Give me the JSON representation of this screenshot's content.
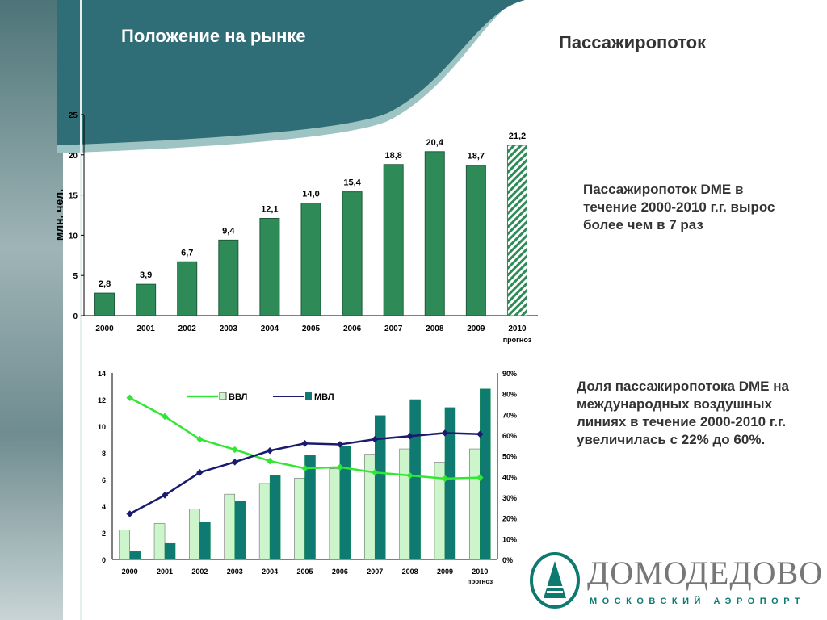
{
  "header": {
    "title": "Положение на рынке",
    "subtitle": "Пассажиропоток"
  },
  "notes": [
    "Пассажиропоток DME в течение 2000-2010 г.г. вырос более чем в 7 раз",
    "Доля пассажиропотока DME на международных воздушных линиях в течение 2000-2010 г.г. увеличилась с 22% до 60%."
  ],
  "logo": {
    "name": "ДОМОДЕДОВО",
    "tagline": "МОСКОВСКИЙ АЭРОПОРТ"
  },
  "colors": {
    "banner": "#2f6e76",
    "bar_green": "#2e8b57",
    "vvl_bar": "#ccf5cc",
    "mvl_bar": "#0e7a72",
    "vvl_line": "#33e633",
    "mvl_line": "#1a1a6e"
  },
  "chart_data": [
    {
      "type": "bar",
      "categories": [
        "2000",
        "2001",
        "2002",
        "2003",
        "2004",
        "2005",
        "2006",
        "2007",
        "2008",
        "2009",
        "2010"
      ],
      "category_sublabels": {
        "2010": "прогноз"
      },
      "values": [
        2.8,
        3.9,
        6.7,
        9.4,
        12.1,
        14.0,
        15.4,
        18.8,
        20.4,
        18.7,
        21.2
      ],
      "data_labels": [
        "2,8",
        "3,9",
        "6,7",
        "9,4",
        "12,1",
        "14,0",
        "15,4",
        "18,8",
        "20,4",
        "18,7",
        "21,2"
      ],
      "ylabel": "млн. чел.",
      "ylim": [
        0,
        25
      ],
      "yticks": [
        0,
        5,
        10,
        15,
        20,
        25
      ],
      "grid": false,
      "forecast_hatched": "2010"
    },
    {
      "type": "bar+line",
      "categories": [
        "2000",
        "2001",
        "2002",
        "2003",
        "2004",
        "2005",
        "2006",
        "2007",
        "2008",
        "2009",
        "2010"
      ],
      "category_sublabels": {
        "2010": "прогноз"
      },
      "ylim": [
        0,
        14
      ],
      "yticks": [
        0,
        2,
        4,
        6,
        8,
        10,
        12,
        14
      ],
      "y2lim": [
        0,
        90
      ],
      "y2ticks": [
        "0%",
        "10%",
        "20%",
        "30%",
        "40%",
        "50%",
        "60%",
        "70%",
        "80%",
        "90%"
      ],
      "legend_placement": "top-left",
      "series": [
        {
          "name": "ВВЛ",
          "kind": "bar",
          "axis": "left",
          "values": [
            2.2,
            2.7,
            3.8,
            4.9,
            5.7,
            6.1,
            6.8,
            7.9,
            8.3,
            7.3,
            8.3
          ]
        },
        {
          "name": "МВЛ",
          "kind": "bar",
          "axis": "left",
          "values": [
            0.6,
            1.2,
            2.8,
            4.4,
            6.3,
            7.8,
            8.5,
            10.8,
            12.0,
            11.4,
            12.8
          ]
        },
        {
          "name": "ВВЛ",
          "kind": "line",
          "axis": "right",
          "values": [
            78,
            69,
            58,
            53,
            47.5,
            44,
            44.5,
            42,
            40.5,
            39,
            39.5
          ]
        },
        {
          "name": "МВЛ",
          "kind": "line",
          "axis": "right",
          "values": [
            22,
            31,
            42,
            47,
            52.5,
            56,
            55.5,
            58,
            59.5,
            61,
            60.5
          ]
        }
      ]
    }
  ]
}
